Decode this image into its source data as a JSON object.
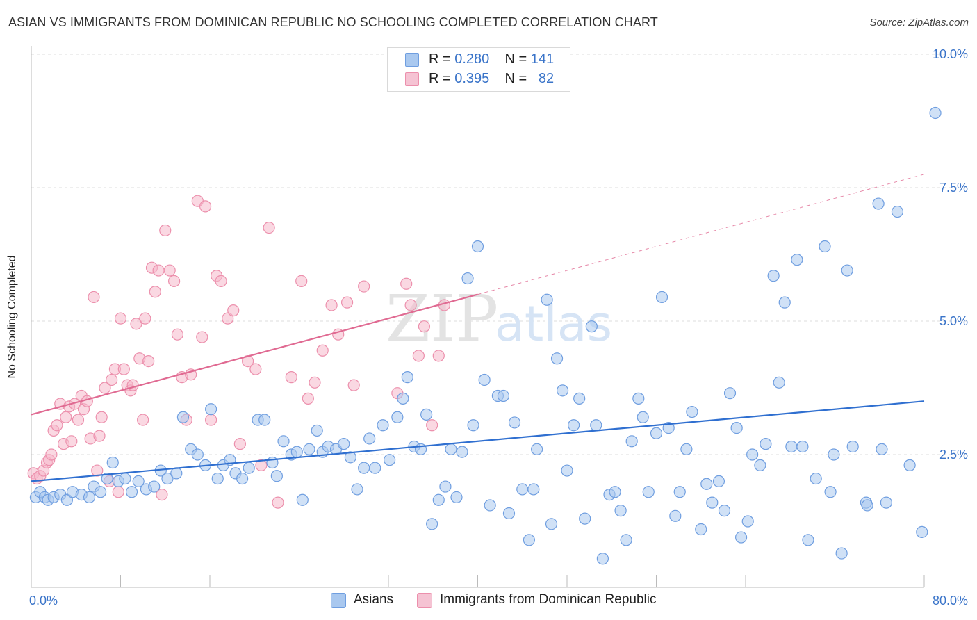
{
  "title": "ASIAN VS IMMIGRANTS FROM DOMINICAN REPUBLIC NO SCHOOLING COMPLETED CORRELATION CHART",
  "source": "Source: ZipAtlas.com",
  "colors": {
    "blue_fill": "#a9c8ef",
    "blue_stroke": "#6f9ee0",
    "blue_line": "#2f6fd0",
    "pink_fill": "#f5b8cb",
    "pink_stroke": "#ec8fac",
    "pink_line": "#e06a92",
    "axis_text": "#3a74c9",
    "grid": "#dddddd"
  },
  "legend_top": {
    "rows": [
      {
        "r_label": "R =",
        "r_value": "0.280",
        "n_label": "N =",
        "n_value": "141"
      },
      {
        "r_label": "R =",
        "r_value": "0.395",
        "n_label": "N =",
        "n_value": "82"
      }
    ]
  },
  "legend_bottom": {
    "items": [
      "Asians",
      "Immigrants from Dominican Republic"
    ]
  },
  "watermark": {
    "zip": "ZIP",
    "atlas": "atlas"
  },
  "chart_data": {
    "type": "scatter",
    "title": "ASIAN VS IMMIGRANTS FROM DOMINICAN REPUBLIC NO SCHOOLING COMPLETED CORRELATION CHART",
    "xlabel": "",
    "ylabel": "No Schooling Completed",
    "xlim": [
      0,
      80
    ],
    "ylim": [
      0,
      10.5
    ],
    "x_tick_labels": [
      {
        "value": 0,
        "label": "0.0%"
      },
      {
        "value": 80,
        "label": "80.0%"
      }
    ],
    "y_tick_labels": [
      {
        "value": 2.5,
        "label": "2.5%"
      },
      {
        "value": 5.0,
        "label": "5.0%"
      },
      {
        "value": 7.5,
        "label": "7.5%"
      },
      {
        "value": 10.0,
        "label": "10.0%"
      }
    ],
    "grid": true,
    "series": [
      {
        "name": "Asians",
        "color": "blue",
        "R": 0.28,
        "N": 141,
        "trend": {
          "x0": 0,
          "y0": 2.0,
          "x1": 80,
          "y1": 3.5
        },
        "points": [
          [
            0.4,
            1.7
          ],
          [
            0.8,
            1.8
          ],
          [
            1.2,
            1.7
          ],
          [
            1.5,
            1.65
          ],
          [
            2.0,
            1.7
          ],
          [
            2.6,
            1.75
          ],
          [
            3.2,
            1.65
          ],
          [
            3.7,
            1.8
          ],
          [
            4.5,
            1.75
          ],
          [
            5.2,
            1.7
          ],
          [
            5.6,
            1.9
          ],
          [
            6.2,
            1.8
          ],
          [
            6.8,
            2.05
          ],
          [
            7.3,
            2.35
          ],
          [
            7.8,
            2.0
          ],
          [
            8.4,
            2.05
          ],
          [
            9.0,
            1.8
          ],
          [
            9.6,
            2.0
          ],
          [
            10.3,
            1.85
          ],
          [
            11.0,
            1.9
          ],
          [
            11.6,
            2.2
          ],
          [
            12.2,
            2.05
          ],
          [
            13.0,
            2.15
          ],
          [
            13.6,
            3.2
          ],
          [
            14.3,
            2.6
          ],
          [
            14.9,
            2.5
          ],
          [
            15.6,
            2.3
          ],
          [
            16.1,
            3.35
          ],
          [
            16.7,
            2.05
          ],
          [
            17.2,
            2.3
          ],
          [
            17.8,
            2.4
          ],
          [
            18.3,
            2.15
          ],
          [
            18.9,
            2.05
          ],
          [
            19.5,
            2.25
          ],
          [
            20.3,
            3.15
          ],
          [
            20.9,
            3.15
          ],
          [
            21.6,
            2.35
          ],
          [
            22.0,
            2.1
          ],
          [
            22.6,
            2.75
          ],
          [
            23.3,
            2.5
          ],
          [
            23.8,
            2.55
          ],
          [
            24.3,
            1.65
          ],
          [
            24.9,
            2.6
          ],
          [
            25.6,
            2.95
          ],
          [
            26.1,
            2.55
          ],
          [
            26.6,
            2.65
          ],
          [
            27.3,
            2.6
          ],
          [
            28.0,
            2.7
          ],
          [
            28.6,
            2.45
          ],
          [
            29.2,
            1.85
          ],
          [
            29.8,
            2.25
          ],
          [
            30.3,
            2.8
          ],
          [
            30.8,
            2.25
          ],
          [
            31.5,
            3.05
          ],
          [
            32.1,
            2.4
          ],
          [
            32.8,
            3.2
          ],
          [
            33.3,
            3.55
          ],
          [
            33.7,
            3.95
          ],
          [
            34.3,
            2.65
          ],
          [
            34.9,
            2.6
          ],
          [
            35.4,
            3.25
          ],
          [
            35.9,
            1.2
          ],
          [
            36.5,
            1.65
          ],
          [
            37.1,
            1.9
          ],
          [
            37.6,
            2.6
          ],
          [
            38.1,
            1.7
          ],
          [
            38.6,
            2.55
          ],
          [
            39.1,
            5.8
          ],
          [
            39.6,
            3.05
          ],
          [
            40.0,
            6.4
          ],
          [
            40.6,
            3.9
          ],
          [
            41.1,
            1.55
          ],
          [
            41.8,
            3.6
          ],
          [
            42.3,
            3.6
          ],
          [
            42.8,
            1.4
          ],
          [
            43.3,
            3.1
          ],
          [
            44.0,
            1.85
          ],
          [
            44.6,
            0.9
          ],
          [
            45.0,
            1.85
          ],
          [
            45.3,
            2.6
          ],
          [
            46.2,
            5.4
          ],
          [
            46.6,
            1.2
          ],
          [
            47.1,
            4.3
          ],
          [
            47.6,
            3.7
          ],
          [
            48.0,
            2.2
          ],
          [
            48.6,
            3.05
          ],
          [
            49.1,
            3.55
          ],
          [
            49.6,
            1.3
          ],
          [
            50.2,
            4.9
          ],
          [
            50.6,
            3.05
          ],
          [
            51.2,
            0.55
          ],
          [
            51.8,
            1.75
          ],
          [
            52.3,
            1.8
          ],
          [
            52.8,
            1.45
          ],
          [
            53.3,
            0.9
          ],
          [
            53.8,
            2.75
          ],
          [
            54.4,
            3.55
          ],
          [
            54.8,
            3.2
          ],
          [
            55.3,
            1.8
          ],
          [
            56.0,
            2.9
          ],
          [
            56.5,
            5.45
          ],
          [
            57.1,
            3.0
          ],
          [
            57.7,
            1.35
          ],
          [
            58.1,
            1.8
          ],
          [
            58.7,
            2.6
          ],
          [
            59.2,
            3.3
          ],
          [
            60.0,
            1.1
          ],
          [
            60.5,
            1.95
          ],
          [
            61.0,
            1.6
          ],
          [
            61.6,
            2.0
          ],
          [
            62.1,
            1.45
          ],
          [
            62.6,
            3.65
          ],
          [
            63.2,
            3.0
          ],
          [
            63.6,
            0.95
          ],
          [
            64.2,
            1.25
          ],
          [
            64.6,
            2.5
          ],
          [
            65.3,
            2.3
          ],
          [
            65.8,
            2.7
          ],
          [
            66.5,
            5.85
          ],
          [
            67.0,
            3.85
          ],
          [
            67.5,
            5.35
          ],
          [
            68.1,
            2.65
          ],
          [
            68.6,
            6.15
          ],
          [
            69.1,
            2.65
          ],
          [
            69.6,
            0.9
          ],
          [
            70.3,
            2.05
          ],
          [
            71.1,
            6.4
          ],
          [
            71.6,
            1.8
          ],
          [
            71.9,
            2.5
          ],
          [
            72.6,
            0.65
          ],
          [
            73.1,
            5.95
          ],
          [
            73.6,
            2.65
          ],
          [
            74.8,
            1.6
          ],
          [
            74.9,
            1.55
          ],
          [
            75.9,
            7.2
          ],
          [
            76.2,
            2.6
          ],
          [
            76.6,
            1.6
          ],
          [
            77.6,
            7.05
          ],
          [
            78.7,
            2.3
          ],
          [
            79.8,
            1.05
          ],
          [
            81.0,
            8.9
          ]
        ]
      },
      {
        "name": "Immigrants from Dominican Republic",
        "color": "pink",
        "R": 0.395,
        "N": 82,
        "trend": {
          "x0": 0,
          "y0": 3.25,
          "x1": 40,
          "y1": 5.5,
          "dashed_to": {
            "x": 80,
            "y": 7.75
          }
        },
        "points": [
          [
            0.2,
            2.15
          ],
          [
            0.5,
            2.05
          ],
          [
            0.8,
            2.1
          ],
          [
            1.1,
            2.2
          ],
          [
            1.4,
            2.35
          ],
          [
            1.6,
            2.4
          ],
          [
            1.8,
            2.5
          ],
          [
            2.0,
            2.95
          ],
          [
            2.3,
            3.05
          ],
          [
            2.6,
            3.45
          ],
          [
            2.9,
            2.7
          ],
          [
            3.1,
            3.2
          ],
          [
            3.4,
            3.4
          ],
          [
            3.6,
            2.75
          ],
          [
            3.9,
            3.45
          ],
          [
            4.2,
            3.15
          ],
          [
            4.5,
            3.6
          ],
          [
            4.7,
            3.35
          ],
          [
            5.0,
            3.5
          ],
          [
            5.3,
            2.8
          ],
          [
            5.6,
            5.45
          ],
          [
            5.9,
            2.2
          ],
          [
            6.1,
            2.85
          ],
          [
            6.3,
            3.2
          ],
          [
            6.6,
            3.75
          ],
          [
            7.0,
            2.0
          ],
          [
            7.2,
            3.9
          ],
          [
            7.5,
            4.1
          ],
          [
            7.8,
            1.8
          ],
          [
            8.0,
            5.05
          ],
          [
            8.3,
            4.1
          ],
          [
            8.6,
            3.8
          ],
          [
            8.9,
            3.7
          ],
          [
            9.1,
            3.8
          ],
          [
            9.4,
            4.95
          ],
          [
            9.7,
            4.3
          ],
          [
            10.0,
            3.15
          ],
          [
            10.2,
            5.05
          ],
          [
            10.5,
            4.25
          ],
          [
            10.8,
            6.0
          ],
          [
            11.1,
            5.55
          ],
          [
            11.4,
            5.95
          ],
          [
            11.7,
            1.75
          ],
          [
            12.0,
            6.7
          ],
          [
            12.4,
            5.95
          ],
          [
            12.8,
            5.75
          ],
          [
            13.1,
            4.75
          ],
          [
            13.5,
            3.95
          ],
          [
            13.9,
            3.15
          ],
          [
            14.3,
            4.0
          ],
          [
            14.9,
            7.25
          ],
          [
            15.3,
            4.7
          ],
          [
            15.6,
            7.15
          ],
          [
            16.1,
            3.15
          ],
          [
            16.6,
            5.85
          ],
          [
            17.0,
            5.75
          ],
          [
            17.6,
            5.05
          ],
          [
            18.1,
            5.2
          ],
          [
            18.7,
            2.7
          ],
          [
            19.4,
            4.25
          ],
          [
            20.1,
            4.1
          ],
          [
            20.6,
            2.3
          ],
          [
            21.3,
            6.75
          ],
          [
            22.1,
            1.6
          ],
          [
            23.3,
            3.95
          ],
          [
            24.2,
            5.75
          ],
          [
            24.8,
            3.55
          ],
          [
            25.4,
            3.85
          ],
          [
            26.1,
            4.45
          ],
          [
            26.9,
            5.3
          ],
          [
            27.5,
            4.75
          ],
          [
            28.3,
            5.35
          ],
          [
            28.9,
            3.8
          ],
          [
            29.8,
            5.65
          ],
          [
            32.8,
            3.65
          ],
          [
            33.6,
            5.7
          ],
          [
            34.0,
            5.3
          ],
          [
            34.7,
            4.35
          ],
          [
            35.2,
            4.9
          ],
          [
            35.9,
            3.05
          ],
          [
            36.5,
            4.35
          ],
          [
            37.0,
            5.3
          ]
        ]
      }
    ]
  }
}
